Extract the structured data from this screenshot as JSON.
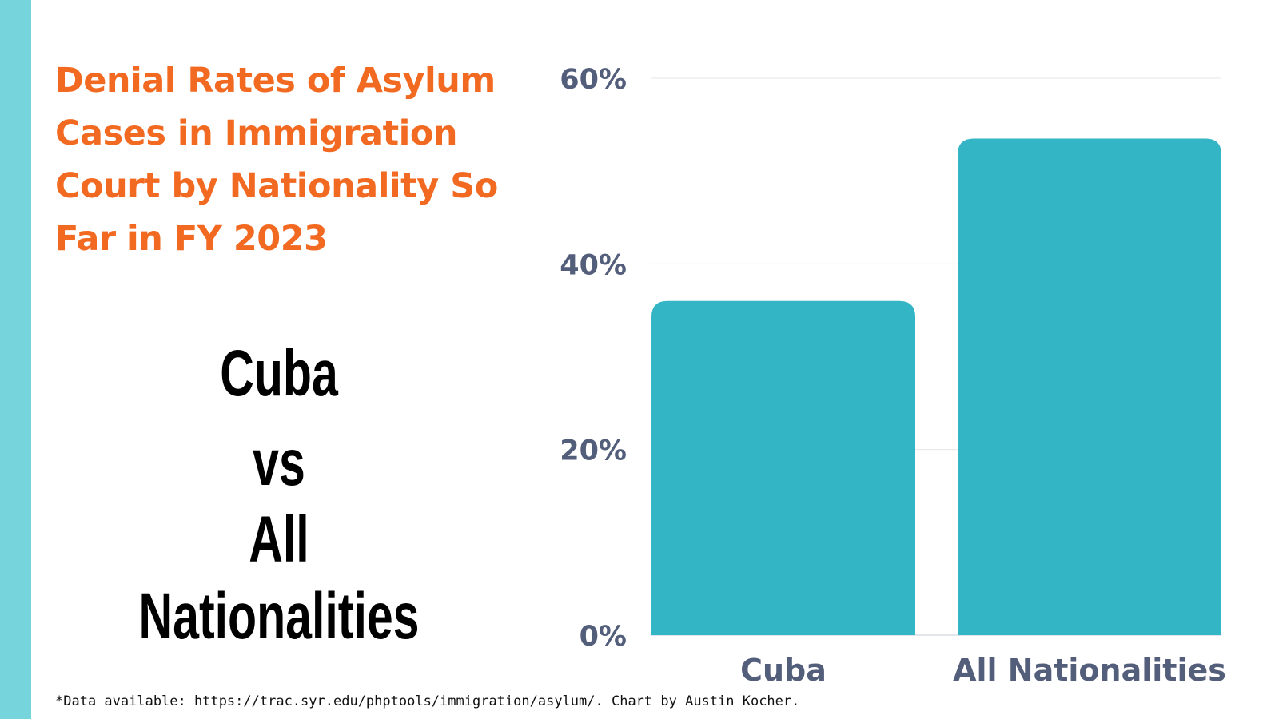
{
  "title": "Denial Rates of Asylum Cases in Immigration Court by Nationality So Far in FY 2023",
  "comparison": {
    "first": "Cuba",
    "separator": "vs",
    "second": "All Nationalities"
  },
  "footnote": "*Data available: https://trac.syr.edu/phptools/immigration/asylum/. Chart by Austin Kocher.",
  "colors": {
    "accent_strip": "#76d4dc",
    "title": "#f26a21",
    "bar": "#33b5c6",
    "axis_text": "#535e7a",
    "grid": "#e6e6e6"
  },
  "chart_data": {
    "type": "bar",
    "categories": [
      "Cuba",
      "All Nationalities"
    ],
    "values": [
      36,
      53.5
    ],
    "ylim": [
      0,
      60
    ],
    "yticks": [
      0,
      20,
      40,
      60
    ],
    "ytick_labels": [
      "0%",
      "20%",
      "40%",
      "60%"
    ],
    "grid": true
  }
}
